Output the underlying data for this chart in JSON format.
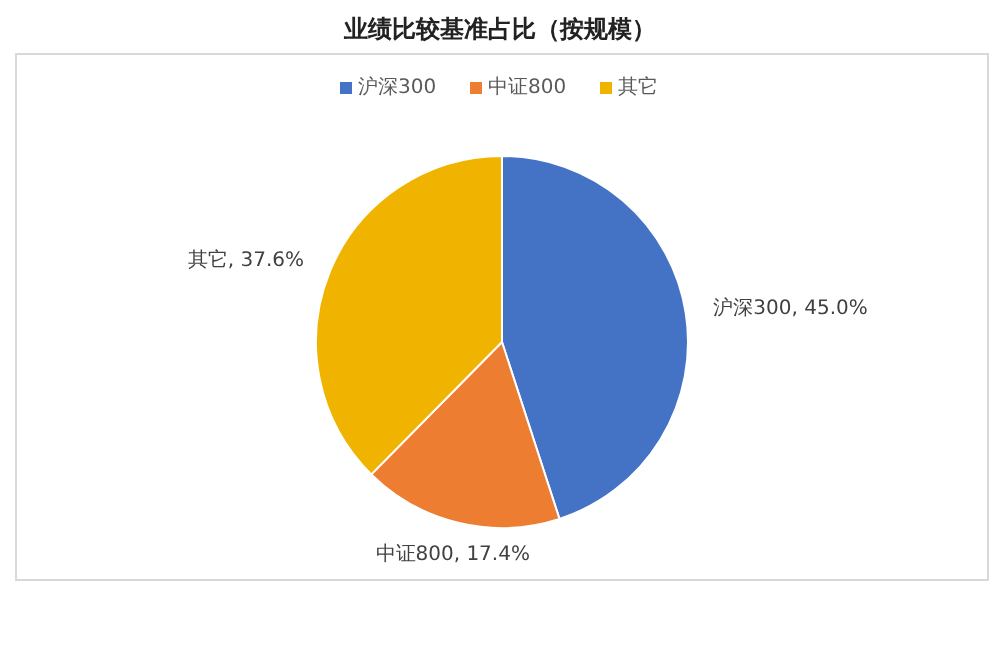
{
  "chart_data": {
    "type": "pie",
    "title": "业绩比较基准占比（按规模）",
    "categories": [
      "沪深300",
      "中证800",
      "其它"
    ],
    "values": [
      45.0,
      17.4,
      37.6
    ],
    "colors": [
      "#4472c4",
      "#ed7d31",
      "#f0b400"
    ],
    "value_labels": [
      "沪深300, 45.0%",
      "中证800, 17.4%",
      "其它, 37.6%"
    ],
    "legend": "top"
  }
}
